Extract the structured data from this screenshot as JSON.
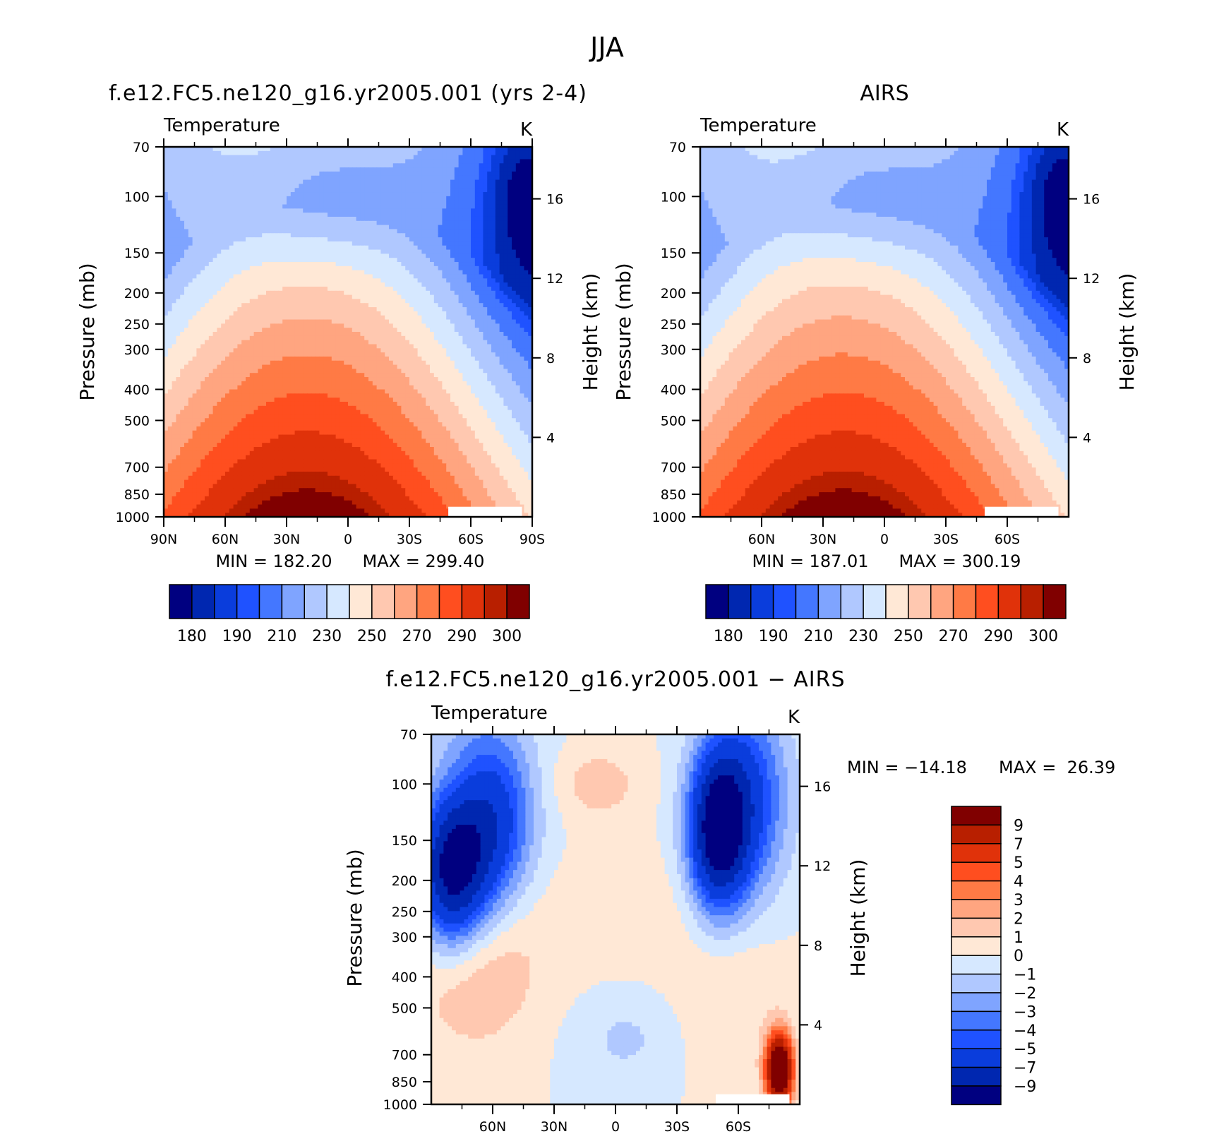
{
  "figure_title": "JJA",
  "colors": {
    "abs_scale": [
      "#000080",
      "#0027b0",
      "#0a3ddc",
      "#1f52ff",
      "#4477ff",
      "#7fa4ff",
      "#b0c8ff",
      "#d6e8ff",
      "#ffe8d6",
      "#ffc8b0",
      "#ffa580",
      "#ff7a45",
      "#ff4e1f",
      "#e0320a",
      "#b81f00",
      "#800000"
    ],
    "diff_scale": [
      "#000080",
      "#0027b0",
      "#0a3ddc",
      "#1f52ff",
      "#4477ff",
      "#7fa4ff",
      "#b0c8ff",
      "#d6e8ff",
      "#ffe8d6",
      "#ffc8b0",
      "#ffa580",
      "#ff7a45",
      "#ff4e1f",
      "#e0320a",
      "#b81f00",
      "#800000"
    ]
  },
  "chart_data": [
    {
      "type": "heatmap",
      "title": "f.e12.FC5.ne120_g16.yr2005.001 (yrs 2-4)",
      "variable": "Temperature",
      "units": "K",
      "ylabel": "Pressure (mb)",
      "ylabel_right": "Height (km)",
      "x_ticks": [
        "90N",
        "60N",
        "30N",
        "0",
        "30S",
        "60S",
        "90S"
      ],
      "y_ticks": [
        "70",
        "100",
        "150",
        "200",
        "250",
        "300",
        "400",
        "500",
        "700",
        "850",
        "1000"
      ],
      "height_ticks": [
        "16",
        "12",
        "8",
        "4"
      ],
      "min_label": "MIN = 182.20",
      "max_label": "MAX = 299.40",
      "min": 182.2,
      "max": 299.4,
      "levels": [
        175,
        180,
        185,
        190,
        200,
        210,
        220,
        230,
        240,
        250,
        260,
        270,
        280,
        290,
        295,
        300
      ],
      "colorbar_labels": [
        "180",
        "190",
        "210",
        "230",
        "250",
        "270",
        "290",
        "300"
      ]
    },
    {
      "type": "heatmap",
      "title": "AIRS",
      "variable": "Temperature",
      "units": "K",
      "ylabel": "Pressure (mb)",
      "ylabel_right": "Height (km)",
      "x_ticks": [
        "60N",
        "30N",
        "0",
        "30S",
        "60S"
      ],
      "y_ticks": [
        "70",
        "100",
        "150",
        "200",
        "250",
        "300",
        "400",
        "500",
        "700",
        "850",
        "1000"
      ],
      "height_ticks": [
        "16",
        "12",
        "8",
        "4"
      ],
      "min_label": "MIN = 187.01",
      "max_label": "MAX = 300.19",
      "min": 187.01,
      "max": 300.19,
      "levels": [
        175,
        180,
        185,
        190,
        200,
        210,
        220,
        230,
        240,
        250,
        260,
        270,
        280,
        290,
        295,
        300
      ],
      "colorbar_labels": [
        "180",
        "190",
        "210",
        "230",
        "250",
        "270",
        "290",
        "300"
      ]
    },
    {
      "type": "heatmap",
      "title": "f.e12.FC5.ne120_g16.yr2005.001 − AIRS",
      "variable": "Temperature",
      "units": "K",
      "ylabel": "Pressure (mb)",
      "ylabel_right": "Height (km)",
      "x_ticks": [
        "60N",
        "30N",
        "0",
        "30S",
        "60S"
      ],
      "y_ticks": [
        "70",
        "100",
        "150",
        "200",
        "250",
        "300",
        "400",
        "500",
        "700",
        "850",
        "1000"
      ],
      "height_ticks": [
        "16",
        "12",
        "8",
        "4"
      ],
      "min_label": "MIN = −14.18",
      "max_label": "MAX =  26.39",
      "min": -14.18,
      "max": 26.39,
      "levels": [
        -9,
        -7,
        -5,
        -4,
        -3,
        -2,
        -1,
        0,
        1,
        2,
        3,
        4,
        5,
        7,
        9
      ],
      "colorbar_labels": [
        "9",
        "7",
        "5",
        "4",
        "3",
        "2",
        "1",
        "0",
        "−1",
        "−2",
        "−3",
        "−4",
        "−5",
        "−7",
        "−9"
      ]
    }
  ]
}
